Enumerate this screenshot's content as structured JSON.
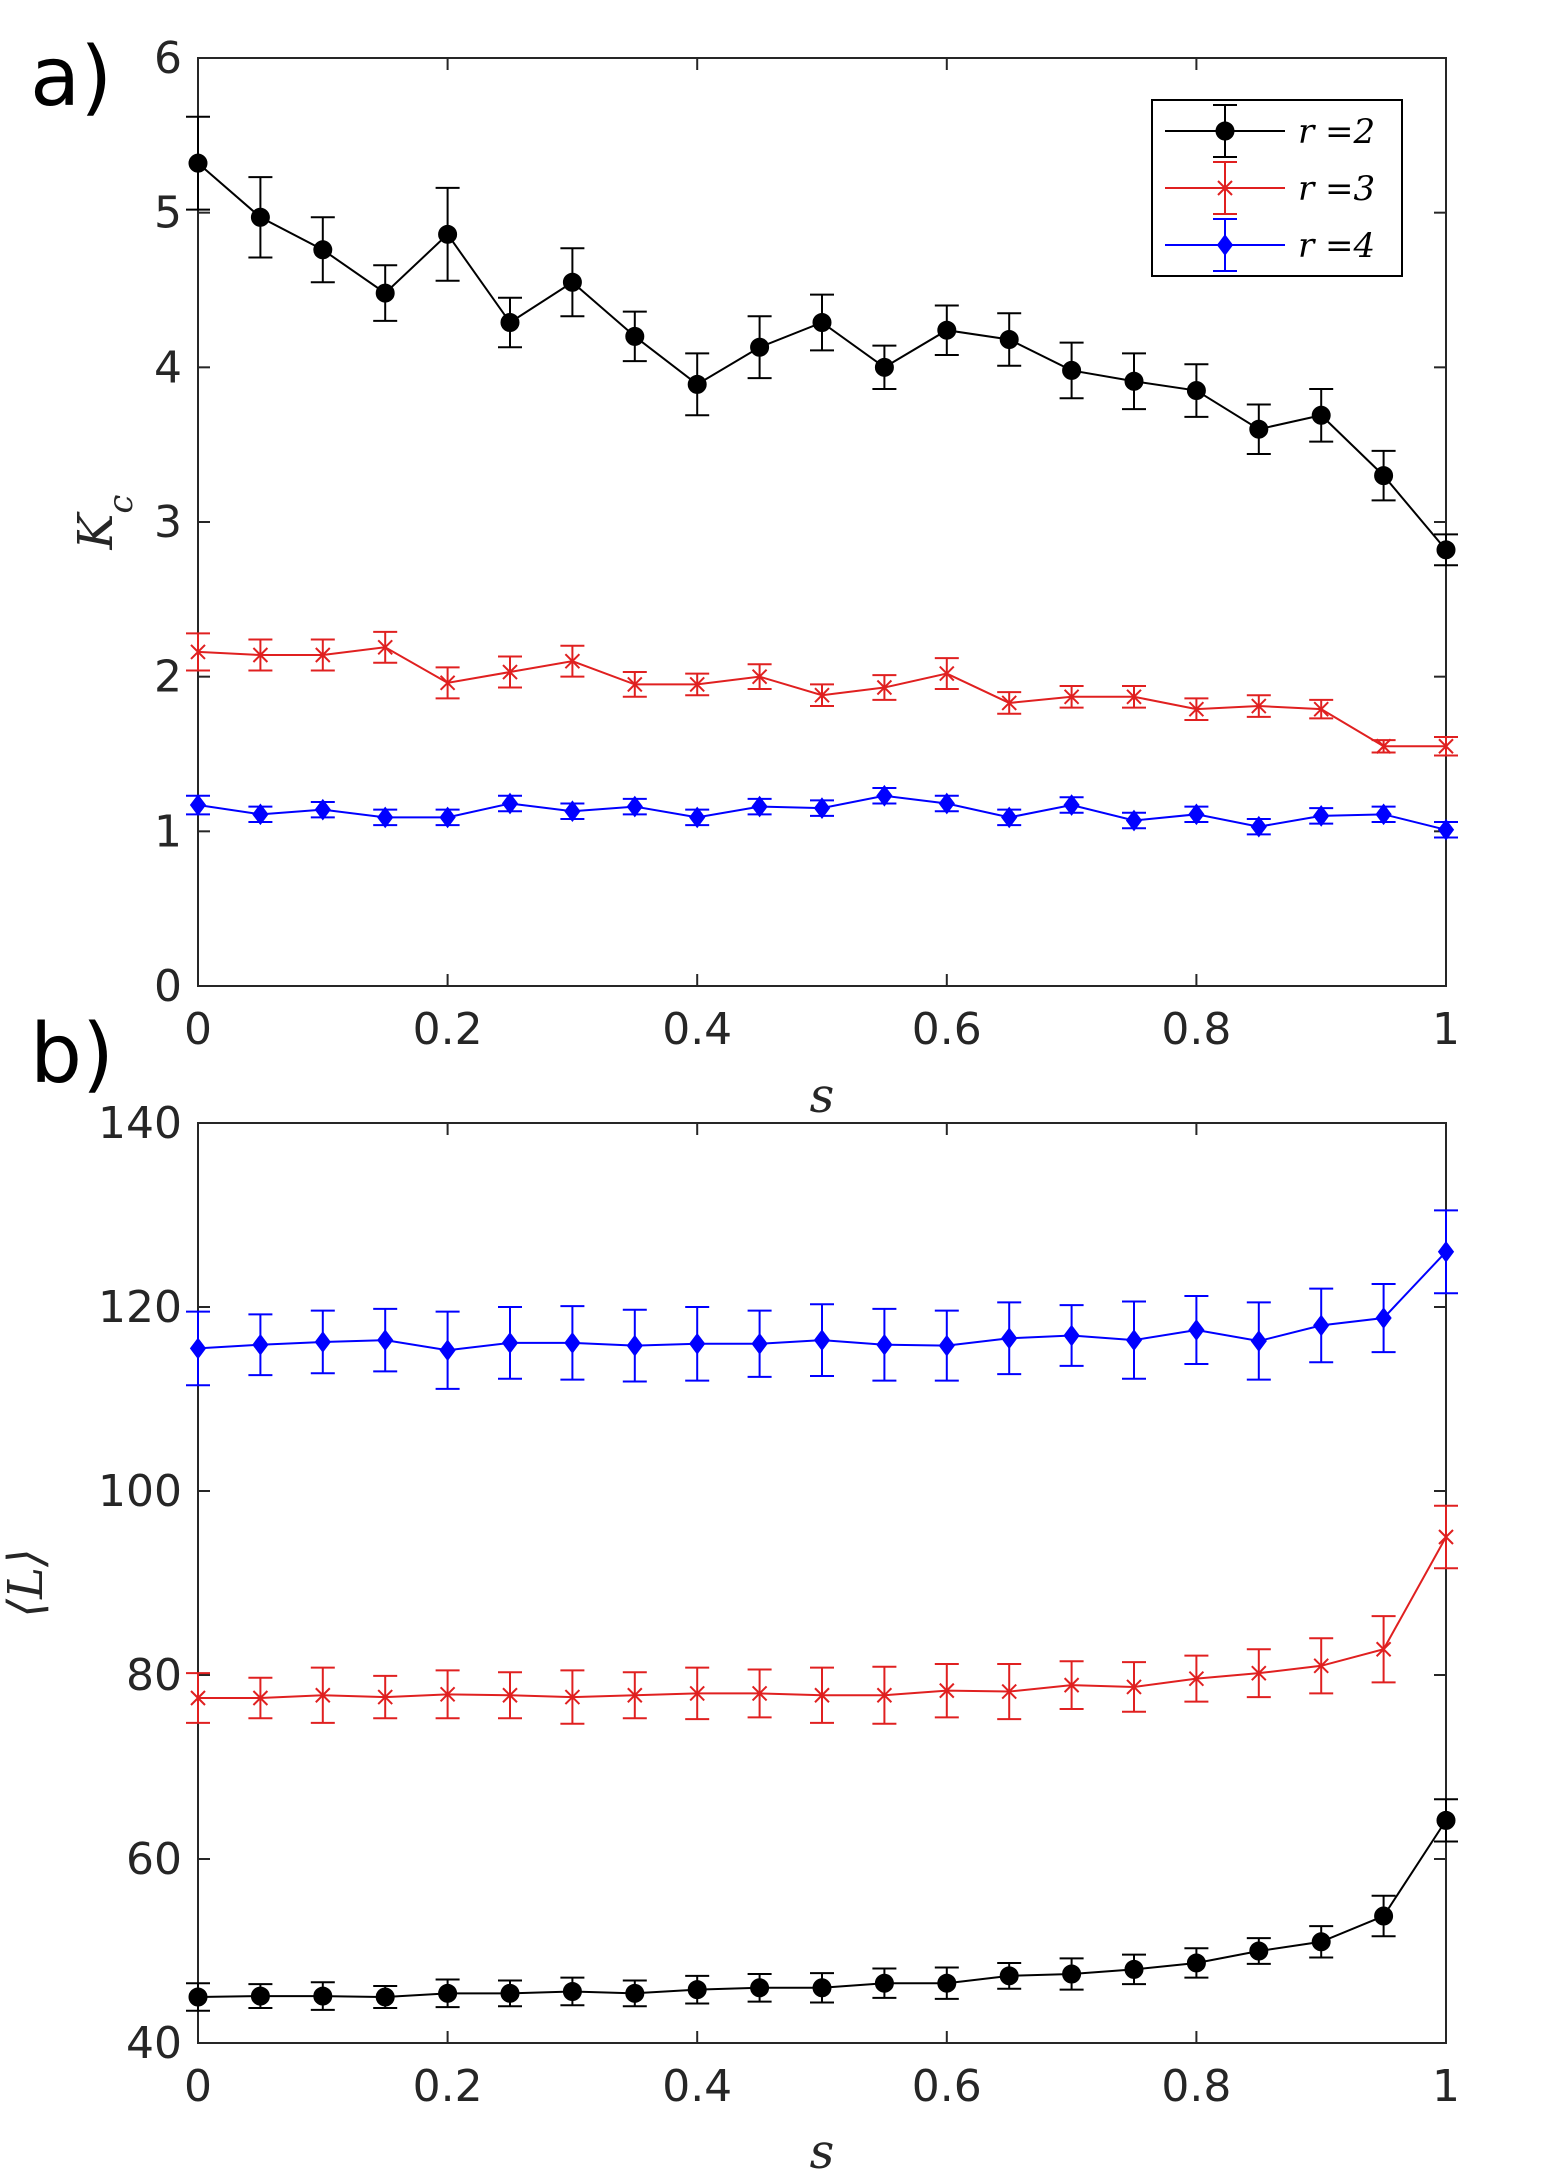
{
  "chart_data": [
    {
      "panel": "a)",
      "type": "line",
      "xlabel": "s",
      "ylabel": "K_c",
      "xlim": [
        0,
        1
      ],
      "ylim": [
        0,
        6
      ],
      "xticks": [
        "0",
        "0.2",
        "0.4",
        "0.6",
        "0.8",
        "1"
      ],
      "yticks": [
        "0",
        "1",
        "2",
        "3",
        "4",
        "5",
        "6"
      ],
      "legend_position": "top-right",
      "x": [
        0,
        0.05,
        0.1,
        0.15,
        0.2,
        0.25,
        0.3,
        0.35,
        0.4,
        0.45,
        0.5,
        0.55,
        0.6,
        0.65,
        0.7,
        0.75,
        0.8,
        0.85,
        0.9,
        0.95,
        1
      ],
      "series": [
        {
          "name": "r =2",
          "var": "r",
          "val": "2",
          "color": "#000000",
          "marker": "circle",
          "values": [
            5.32,
            4.97,
            4.76,
            4.48,
            4.86,
            4.29,
            4.55,
            4.2,
            3.89,
            4.13,
            4.29,
            4.0,
            4.24,
            4.18,
            3.98,
            3.91,
            3.85,
            3.6,
            3.69,
            3.3,
            2.82
          ],
          "errors": [
            0.3,
            0.26,
            0.21,
            0.18,
            0.3,
            0.16,
            0.22,
            0.16,
            0.2,
            0.2,
            0.18,
            0.14,
            0.16,
            0.17,
            0.18,
            0.18,
            0.17,
            0.16,
            0.17,
            0.16,
            0.1
          ]
        },
        {
          "name": "r =3",
          "var": "r",
          "val": "3",
          "color": "#e02020",
          "marker": "cross",
          "values": [
            2.16,
            2.14,
            2.14,
            2.19,
            1.96,
            2.03,
            2.1,
            1.95,
            1.95,
            2.0,
            1.88,
            1.93,
            2.02,
            1.83,
            1.87,
            1.87,
            1.79,
            1.81,
            1.79,
            1.55,
            1.55
          ],
          "errors": [
            0.12,
            0.1,
            0.1,
            0.1,
            0.1,
            0.1,
            0.1,
            0.08,
            0.07,
            0.08,
            0.07,
            0.08,
            0.1,
            0.07,
            0.07,
            0.07,
            0.07,
            0.07,
            0.06,
            0.04,
            0.06
          ]
        },
        {
          "name": "r =4",
          "var": "r",
          "val": "4",
          "color": "#0000ff",
          "marker": "diamond",
          "values": [
            1.17,
            1.11,
            1.14,
            1.09,
            1.09,
            1.18,
            1.13,
            1.16,
            1.09,
            1.16,
            1.15,
            1.23,
            1.18,
            1.09,
            1.17,
            1.07,
            1.11,
            1.03,
            1.1,
            1.11,
            1.01
          ],
          "errors": [
            0.06,
            0.05,
            0.05,
            0.05,
            0.05,
            0.05,
            0.05,
            0.05,
            0.05,
            0.05,
            0.05,
            0.05,
            0.05,
            0.05,
            0.05,
            0.05,
            0.05,
            0.05,
            0.05,
            0.05,
            0.05
          ]
        }
      ]
    },
    {
      "panel": "b)",
      "type": "line",
      "xlabel": "s",
      "ylabel": "⟨L⟩",
      "xlim": [
        0,
        1
      ],
      "ylim": [
        40,
        140
      ],
      "xticks": [
        "0",
        "0.2",
        "0.4",
        "0.6",
        "0.8",
        "1"
      ],
      "yticks": [
        "40",
        "60",
        "80",
        "100",
        "120",
        "140"
      ],
      "x": [
        0,
        0.05,
        0.1,
        0.15,
        0.2,
        0.25,
        0.3,
        0.35,
        0.4,
        0.45,
        0.5,
        0.55,
        0.6,
        0.65,
        0.7,
        0.75,
        0.8,
        0.85,
        0.9,
        0.95,
        1
      ],
      "series": [
        {
          "name": "r =4",
          "color": "#0000ff",
          "marker": "diamond",
          "values": [
            115.5,
            115.9,
            116.2,
            116.4,
            115.3,
            116.1,
            116.1,
            115.8,
            116.0,
            116.0,
            116.4,
            115.9,
            115.8,
            116.6,
            116.9,
            116.4,
            117.5,
            116.3,
            118.0,
            118.8,
            126.0
          ],
          "errors": [
            4.0,
            3.3,
            3.4,
            3.4,
            4.2,
            3.9,
            4.0,
            3.9,
            4.0,
            3.6,
            3.9,
            3.9,
            3.8,
            3.9,
            3.3,
            4.2,
            3.7,
            4.2,
            4.0,
            3.7,
            4.5
          ]
        },
        {
          "name": "r =3",
          "color": "#e02020",
          "marker": "cross",
          "values": [
            77.5,
            77.5,
            77.8,
            77.6,
            77.9,
            77.8,
            77.6,
            77.8,
            78.0,
            78.0,
            77.8,
            77.8,
            78.3,
            78.2,
            78.9,
            78.7,
            79.6,
            80.2,
            81.0,
            82.8,
            95.0
          ],
          "errors": [
            2.7,
            2.2,
            3.0,
            2.3,
            2.6,
            2.5,
            2.9,
            2.5,
            2.8,
            2.6,
            3.0,
            3.1,
            2.9,
            3.0,
            2.6,
            2.7,
            2.5,
            2.6,
            3.0,
            3.6,
            3.4
          ]
        },
        {
          "name": "r =2",
          "color": "#000000",
          "marker": "circle",
          "values": [
            45.0,
            45.1,
            45.1,
            45.0,
            45.4,
            45.4,
            45.6,
            45.4,
            45.8,
            46.0,
            46.0,
            46.5,
            46.5,
            47.3,
            47.5,
            48.0,
            48.7,
            50.0,
            51.0,
            53.8,
            64.2
          ],
          "errors": [
            1.5,
            1.3,
            1.5,
            1.2,
            1.5,
            1.4,
            1.5,
            1.4,
            1.5,
            1.5,
            1.6,
            1.6,
            1.7,
            1.4,
            1.7,
            1.6,
            1.6,
            1.4,
            1.7,
            2.2,
            2.3
          ]
        }
      ]
    }
  ]
}
